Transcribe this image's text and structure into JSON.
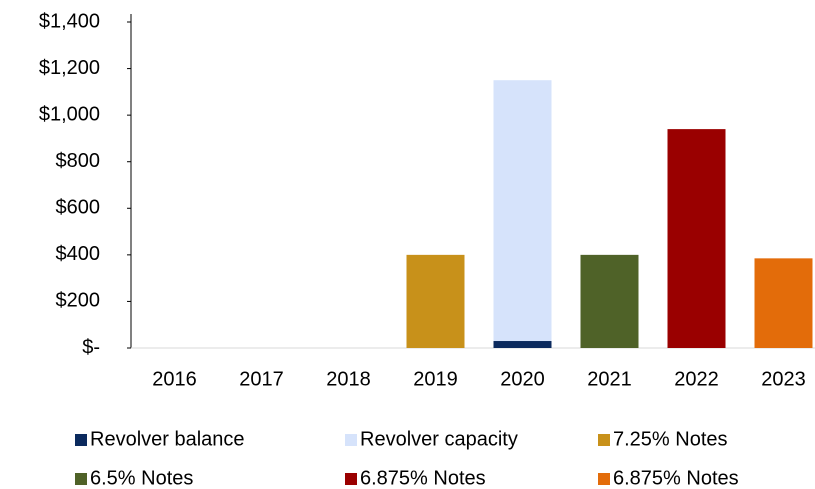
{
  "chart_data": {
    "type": "stacked_bar",
    "categories": [
      "2016",
      "2017",
      "2018",
      "2019",
      "2020",
      "2021",
      "2022",
      "2023"
    ],
    "series": [
      {
        "name": "Revolver balance",
        "color": "#0b2a5e",
        "values": [
          null,
          null,
          null,
          null,
          30,
          null,
          null,
          null
        ]
      },
      {
        "name": "Revolver capacity",
        "color": "#d6e3fb",
        "values": [
          null,
          null,
          null,
          null,
          1120,
          null,
          null,
          null
        ]
      },
      {
        "name": "7.25% Notes",
        "color": "#c8911a",
        "values": [
          null,
          null,
          null,
          400,
          null,
          null,
          null,
          null
        ]
      },
      {
        "name": "6.5% Notes",
        "color": "#4f6228",
        "values": [
          null,
          null,
          null,
          null,
          null,
          400,
          null,
          null
        ]
      },
      {
        "name": "6.875% Notes",
        "color": "#9a0000",
        "values": [
          null,
          null,
          null,
          null,
          null,
          null,
          940,
          null
        ]
      },
      {
        "name": "6.875% Notes",
        "color": "#e36c0a",
        "values": [
          null,
          null,
          null,
          null,
          null,
          null,
          null,
          385
        ]
      }
    ],
    "ylim": [
      0,
      1400
    ],
    "yticks": [
      {
        "value": 0,
        "label": "$-"
      },
      {
        "value": 200,
        "label": "$200"
      },
      {
        "value": 400,
        "label": "$400"
      },
      {
        "value": 600,
        "label": "$600"
      },
      {
        "value": 800,
        "label": "$800"
      },
      {
        "value": 1000,
        "label": "$1,000"
      },
      {
        "value": 1200,
        "label": "$1,200"
      },
      {
        "value": 1400,
        "label": "$1,400"
      }
    ],
    "grid": false
  }
}
